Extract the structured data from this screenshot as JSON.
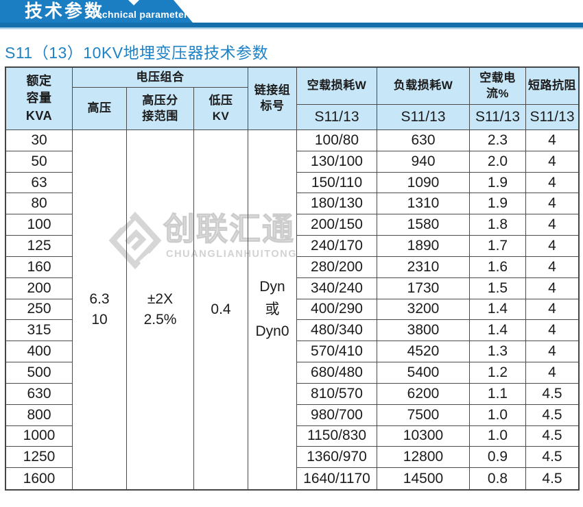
{
  "banner": {
    "title": "技术参数",
    "title_en": "Technical parameter",
    "colors": {
      "banner_blue": "#1b7dc2",
      "strip_blue": "#156fad",
      "strip_light": "#a9cde7"
    }
  },
  "page_subtitle": "S11（13）10KV地埋变压器技术参数",
  "watermark": {
    "logo_icon": "diamond-swirl",
    "name_cn": "创联汇通",
    "name_en": "CHUANGLIANHUITONG"
  },
  "table": {
    "colors": {
      "header_bg": "#c7e6f7",
      "border": "#4a4a4a",
      "text": "#1b1b1b"
    },
    "headers": {
      "rated_capacity": "额定\n容量\nKVA",
      "voltage_combination": "电压组合",
      "high_voltage": "高压",
      "hv_tap_range": "高压分\n接范围",
      "low_voltage": "低压\nKV",
      "vector_group": "链接组\n标号",
      "no_load_loss": "空载损耗W",
      "load_loss": "负载损耗W",
      "no_load_current": "空载电流%",
      "impedance": "短路抗阻",
      "model": "S11/13"
    },
    "merged_values": {
      "high_voltage": "6.3\n10",
      "hv_tap_range": "±2X\n2.5%",
      "low_voltage": "0.4",
      "vector_group": "Dyn\n或\nDyn0"
    },
    "rows": [
      {
        "kva": "30",
        "no_load_loss": "100/80",
        "load_loss": "630",
        "no_load_current": "2.3",
        "impedance": "4"
      },
      {
        "kva": "50",
        "no_load_loss": "130/100",
        "load_loss": "940",
        "no_load_current": "2.0",
        "impedance": "4"
      },
      {
        "kva": "63",
        "no_load_loss": "150/110",
        "load_loss": "1090",
        "no_load_current": "1.9",
        "impedance": "4"
      },
      {
        "kva": "80",
        "no_load_loss": "180/130",
        "load_loss": "1310",
        "no_load_current": "1.9",
        "impedance": "4"
      },
      {
        "kva": "100",
        "no_load_loss": "200/150",
        "load_loss": "1580",
        "no_load_current": "1.8",
        "impedance": "4"
      },
      {
        "kva": "125",
        "no_load_loss": "240/170",
        "load_loss": "1890",
        "no_load_current": "1.7",
        "impedance": "4"
      },
      {
        "kva": "160",
        "no_load_loss": "280/200",
        "load_loss": "2310",
        "no_load_current": "1.6",
        "impedance": "4"
      },
      {
        "kva": "200",
        "no_load_loss": "340/240",
        "load_loss": "1730",
        "no_load_current": "1.5",
        "impedance": "4"
      },
      {
        "kva": "250",
        "no_load_loss": "400/290",
        "load_loss": "3200",
        "no_load_current": "1.4",
        "impedance": "4"
      },
      {
        "kva": "315",
        "no_load_loss": "480/340",
        "load_loss": "3800",
        "no_load_current": "1.4",
        "impedance": "4"
      },
      {
        "kva": "400",
        "no_load_loss": "570/410",
        "load_loss": "4520",
        "no_load_current": "1.3",
        "impedance": "4"
      },
      {
        "kva": "500",
        "no_load_loss": "680/480",
        "load_loss": "5400",
        "no_load_current": "1.2",
        "impedance": "4"
      },
      {
        "kva": "630",
        "no_load_loss": "810/570",
        "load_loss": "6200",
        "no_load_current": "1.1",
        "impedance": "4.5"
      },
      {
        "kva": "800",
        "no_load_loss": "980/700",
        "load_loss": "7500",
        "no_load_current": "1.0",
        "impedance": "4.5"
      },
      {
        "kva": "1000",
        "no_load_loss": "1150/830",
        "load_loss": "10300",
        "no_load_current": "1.0",
        "impedance": "4.5"
      },
      {
        "kva": "1250",
        "no_load_loss": "1360/970",
        "load_loss": "12800",
        "no_load_current": "0.9",
        "impedance": "4.5"
      },
      {
        "kva": "1600",
        "no_load_loss": "1640/1170",
        "load_loss": "14500",
        "no_load_current": "0.8",
        "impedance": "4.5"
      }
    ]
  }
}
